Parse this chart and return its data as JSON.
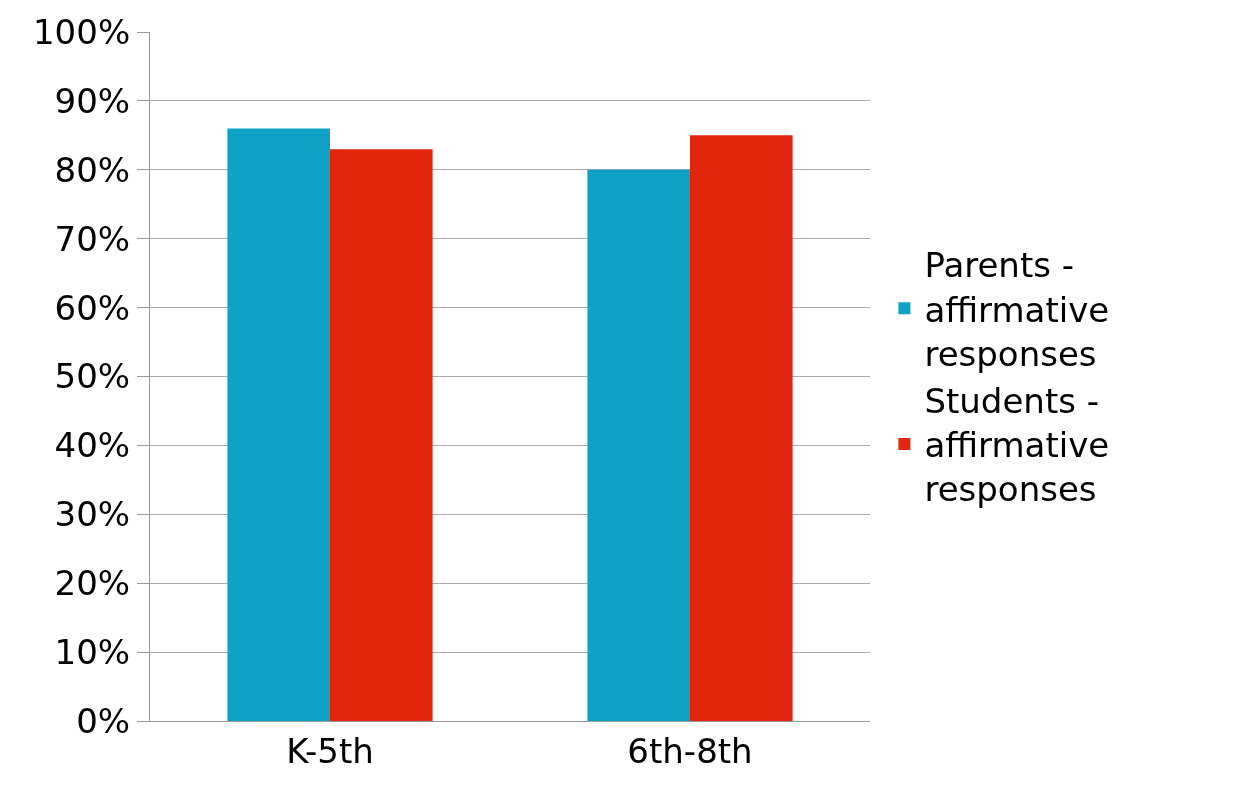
{
  "chart_data": {
    "type": "bar",
    "categories": [
      "K-5th",
      "6th-8th"
    ],
    "series": [
      {
        "name": "Parents - affirmative responses",
        "color": "#0ea3c6",
        "values": [
          86,
          80
        ]
      },
      {
        "name": "Students - affirmative responses",
        "color": "#e2260e",
        "values": [
          83,
          85
        ]
      }
    ],
    "ylim": [
      0,
      100
    ],
    "yticks": [
      {
        "value": 0,
        "label": "0%"
      },
      {
        "value": 10,
        "label": "10%"
      },
      {
        "value": 20,
        "label": "20%"
      },
      {
        "value": 30,
        "label": "30%"
      },
      {
        "value": 40,
        "label": "40%"
      },
      {
        "value": 50,
        "label": "50%"
      },
      {
        "value": 60,
        "label": "60%"
      },
      {
        "value": 70,
        "label": "70%"
      },
      {
        "value": 80,
        "label": "80%"
      },
      {
        "value": 90,
        "label": "90%"
      },
      {
        "value": 100,
        "label": "100%"
      }
    ],
    "grid": "y",
    "legend": "right"
  }
}
